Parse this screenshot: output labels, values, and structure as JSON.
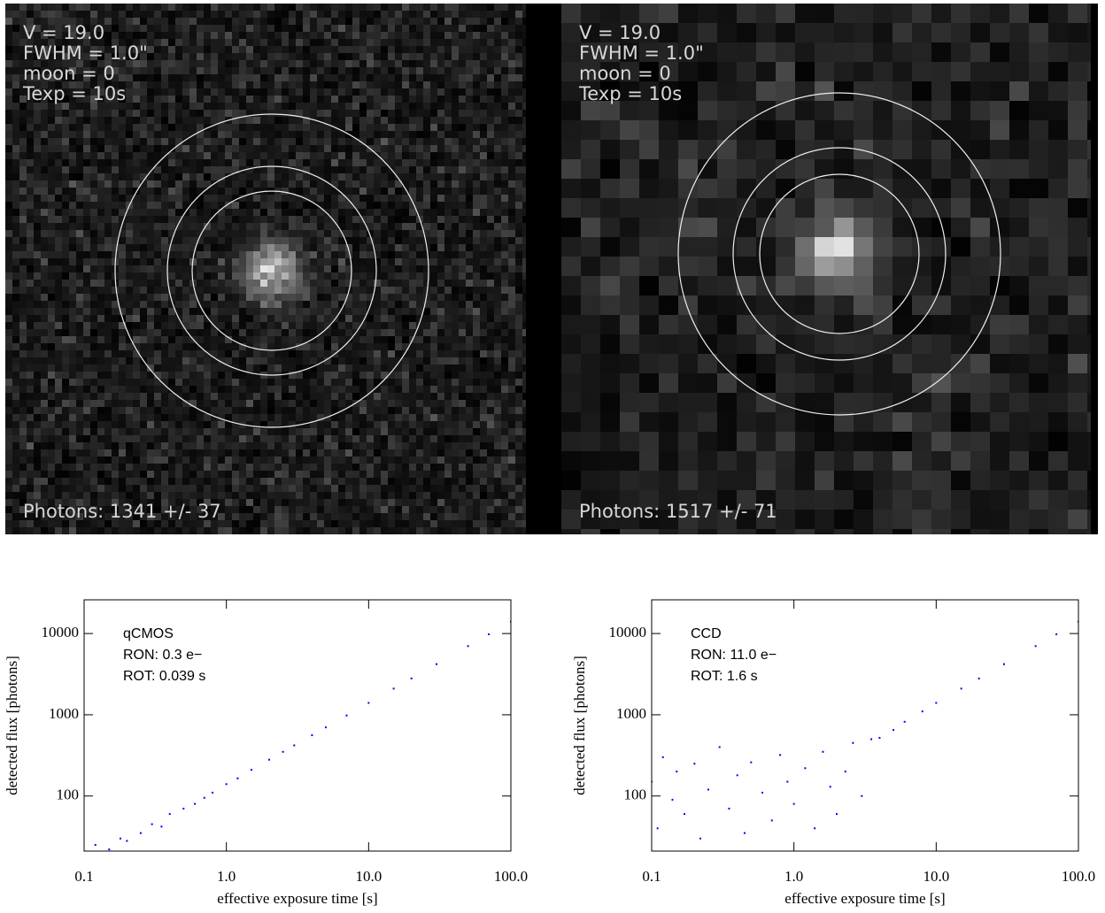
{
  "panels": [
    {
      "lines": [
        "V = 19.0",
        "FWHM = 1.0\"",
        "moon = 0",
        "Texp = 10s"
      ],
      "photons": "Photons:  1341 +/- 37"
    },
    {
      "lines": [
        "V = 19.0",
        "FWHM = 1.0\"",
        "moon = 0",
        "Texp = 10s"
      ],
      "photons": "Photons:  1517 +/- 71"
    }
  ],
  "chart_data": [
    {
      "type": "scatter",
      "annotations": [
        "qCMOS",
        "RON: 0.3 e−",
        "ROT: 0.039 s"
      ],
      "x_label": "effective exposure time [s]",
      "y_label": "detected flux [photons]",
      "log_x": true,
      "log_y": true,
      "xlim": [
        0.1,
        100
      ],
      "ylim": [
        21,
        26000
      ],
      "xticks": [
        0.1,
        {
          "value": 1,
          "label": "1.0"
        },
        {
          "value": 10,
          "label": "10.0"
        },
        {
          "value": 100,
          "label": "100.0"
        }
      ],
      "yticks": [
        100,
        1000,
        10000
      ],
      "series": [
        {
          "color": "#0000ff",
          "x": [
            0.1,
            0.12,
            0.15,
            0.18,
            0.2,
            0.25,
            0.3,
            0.35,
            0.4,
            0.5,
            0.6,
            0.7,
            0.8,
            1.0,
            1.2,
            1.5,
            2,
            2.5,
            3,
            4,
            5,
            7,
            10,
            15,
            20,
            30,
            50,
            70,
            100
          ],
          "y": [
            20,
            25,
            22,
            30,
            28,
            35,
            45,
            42,
            60,
            70,
            80,
            95,
            110,
            140,
            165,
            210,
            280,
            350,
            420,
            560,
            700,
            980,
            1400,
            2100,
            2800,
            4200,
            7000,
            9800,
            14000
          ]
        }
      ]
    },
    {
      "type": "scatter",
      "annotations": [
        "CCD",
        "RON: 11.0 e−",
        "ROT: 1.6 s"
      ],
      "x_label": "effective exposure time [s]",
      "y_label": "detected flux [photons]",
      "log_x": true,
      "log_y": true,
      "xlim": [
        0.1,
        100
      ],
      "ylim": [
        21,
        26000
      ],
      "xticks": [
        0.1,
        {
          "value": 1,
          "label": "1.0"
        },
        {
          "value": 10,
          "label": "10.0"
        },
        {
          "value": 100,
          "label": "100.0"
        }
      ],
      "yticks": [
        100,
        1000,
        10000
      ],
      "series": [
        {
          "color": "#0000ff",
          "x": [
            0.1,
            0.11,
            0.12,
            0.14,
            0.15,
            0.17,
            0.2,
            0.22,
            0.25,
            0.3,
            0.35,
            0.4,
            0.45,
            0.5,
            0.6,
            0.7,
            0.8,
            0.9,
            1.0,
            1.2,
            1.4,
            1.6,
            1.8,
            2,
            2.3,
            2.6,
            3,
            3.5,
            4,
            5,
            6,
            8,
            10,
            15,
            20,
            30,
            50,
            70,
            100
          ],
          "y": [
            150,
            40,
            300,
            90,
            200,
            60,
            250,
            30,
            120,
            400,
            70,
            180,
            35,
            260,
            110,
            50,
            320,
            150,
            80,
            220,
            40,
            350,
            130,
            60,
            200,
            450,
            100,
            500,
            520,
            650,
            820,
            1100,
            1400,
            2100,
            2800,
            4200,
            7000,
            9800,
            14000
          ]
        }
      ]
    }
  ]
}
